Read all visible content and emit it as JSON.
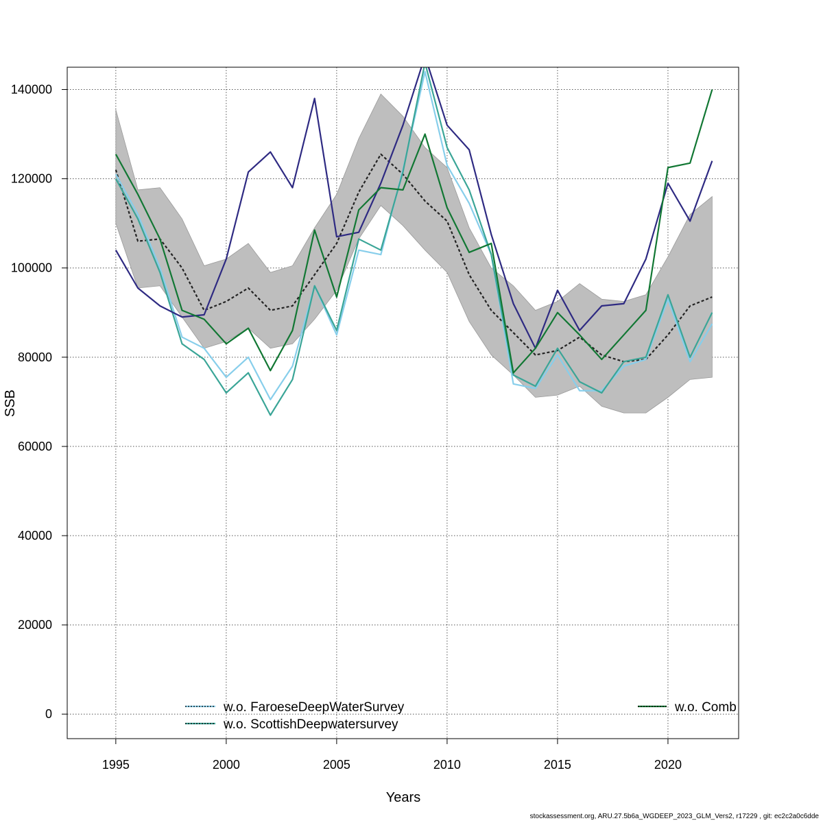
{
  "footer_text": "stockassessment.org, ARU.27.5b6a_WGDEEP_2023_GLM_Vers2, r17229 , git: ec2c2a0c6dde",
  "chart_data": {
    "type": "line",
    "xlabel": "Years",
    "ylabel": "SSB",
    "xlim": [
      1992.8,
      2023.2
    ],
    "ylim": [
      -5500,
      145000
    ],
    "x_ticks": [
      1995,
      2000,
      2005,
      2010,
      2015,
      2020
    ],
    "y_ticks": [
      0,
      20000,
      40000,
      60000,
      80000,
      100000,
      120000,
      140000
    ],
    "grid": true,
    "years": [
      1995,
      1996,
      1997,
      1998,
      1999,
      2000,
      2001,
      2002,
      2003,
      2004,
      2005,
      2006,
      2007,
      2008,
      2009,
      2010,
      2011,
      2012,
      2013,
      2014,
      2015,
      2016,
      2017,
      2018,
      2019,
      2020,
      2021,
      2022
    ],
    "band": {
      "color": "#bebebe",
      "lower": [
        110000,
        95500,
        96000,
        89000,
        82000,
        83500,
        86500,
        82000,
        83000,
        88500,
        95000,
        106500,
        114000,
        109500,
        104000,
        99000,
        88000,
        80500,
        76000,
        71000,
        71500,
        73500,
        69000,
        67500,
        67500,
        71000,
        75000,
        75500
      ],
      "upper": [
        135500,
        117500,
        118000,
        111000,
        100500,
        102000,
        105500,
        99000,
        100500,
        109000,
        116500,
        129000,
        139000,
        134000,
        127000,
        122500,
        109000,
        100000,
        96000,
        90500,
        92500,
        96500,
        93000,
        92500,
        94000,
        102500,
        112000,
        116000
      ]
    },
    "series": [
      {
        "name": "",
        "color": "#222222",
        "dashed": true,
        "values": [
          122000,
          106000,
          106500,
          100000,
          90500,
          92500,
          95500,
          90500,
          91500,
          98500,
          105500,
          117000,
          125500,
          121000,
          115000,
          110500,
          98500,
          90500,
          85500,
          80500,
          81500,
          84500,
          80500,
          79000,
          79500,
          85000,
          91500,
          93500
        ]
      },
      {
        "name": "w.o. FaroeseDeepWaterSurvey",
        "color": "#87ceeb",
        "dashed": false,
        "values": [
          121000,
          112000,
          100000,
          84500,
          82000,
          75500,
          80000,
          70500,
          78000,
          96000,
          85000,
          104000,
          103000,
          122000,
          144000,
          123000,
          114500,
          103000,
          74000,
          73000,
          80500,
          72500,
          72500,
          78000,
          79500,
          93000,
          79000,
          87500
        ]
      },
      {
        "name": "w.o. ScottishDeepwatersurvey",
        "color": "#3aa597",
        "dashed": false,
        "values": [
          120000,
          111000,
          99000,
          83000,
          79500,
          72000,
          76500,
          67000,
          75000,
          96000,
          86000,
          106500,
          104000,
          121500,
          146000,
          127000,
          117500,
          103000,
          76000,
          73500,
          82000,
          74500,
          72000,
          79000,
          80000,
          94000,
          80000,
          90000
        ]
      },
      {
        "name": "",
        "color": "#2e2a82",
        "dashed": false,
        "values": [
          104000,
          95500,
          91500,
          89000,
          89500,
          102000,
          121500,
          126000,
          118000,
          138000,
          107000,
          108000,
          119000,
          132000,
          147500,
          132000,
          126500,
          107500,
          92000,
          82000,
          95000,
          86000,
          91500,
          92000,
          102000,
          119000,
          110500,
          124000
        ]
      },
      {
        "name": "w.o. Comb",
        "color": "#117733",
        "dashed": false,
        "values": [
          125500,
          116500,
          106500,
          90500,
          88500,
          83000,
          86500,
          77000,
          86000,
          108500,
          93500,
          113000,
          118000,
          117500,
          130000,
          113500,
          103500,
          105500,
          76500,
          82000,
          90000,
          85000,
          79500,
          85000,
          90500,
          122500,
          123500,
          140000
        ]
      }
    ],
    "legend": [
      {
        "label": "w.o. FaroeseDeepWaterSurvey",
        "color": "#87ceeb",
        "position": "bottom-center"
      },
      {
        "label": "w.o. ScottishDeepwatersurvey",
        "color": "#3aa597",
        "position": "bottom-center"
      },
      {
        "label": "w.o. Comb",
        "color": "#117733",
        "position": "bottom-right"
      }
    ]
  }
}
